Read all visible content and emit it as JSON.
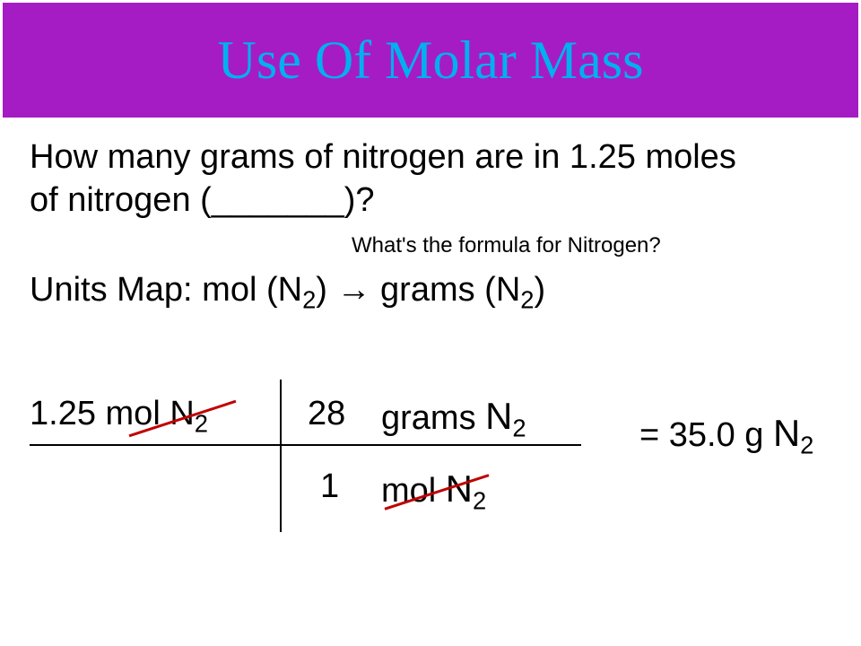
{
  "slide": {
    "background_color": "#ffffff",
    "title_bar_color": "#a61cc4",
    "title_text_color": "#00b0f0",
    "body_text_color": "#000000",
    "cancel_line_color": "#c00000",
    "title": "Use Of Molar Mass",
    "title_fontsize": 60,
    "body_fontsize": 38,
    "hint_fontsize": 24,
    "question": {
      "line1": "How many grams of nitrogen are in 1.25 moles",
      "line2_prefix": "of nitrogen (",
      "blank": "_______",
      "line2_suffix": ")?"
    },
    "hint": "What's the formula for Nitrogen?",
    "units_map": {
      "prefix": "Units Map: mol (N",
      "sub1": "2",
      "arrow": ") → grams (N",
      "sub2": "2",
      "suffix": ")"
    },
    "calc": {
      "given_value": "1.25",
      "given_unit_prefix": " mol N",
      "given_unit_sub": "2",
      "numerator_value": "28",
      "numerator_unit_prefix": "grams ",
      "numerator_unit_N": "N",
      "numerator_unit_sub": "2",
      "denominator_value": "1",
      "denominator_unit_prefix": "mol ",
      "denominator_unit_N": "N",
      "denominator_unit_sub": "2",
      "result_prefix": "= 35.0 g ",
      "result_N": "N",
      "result_sub": "2"
    }
  }
}
